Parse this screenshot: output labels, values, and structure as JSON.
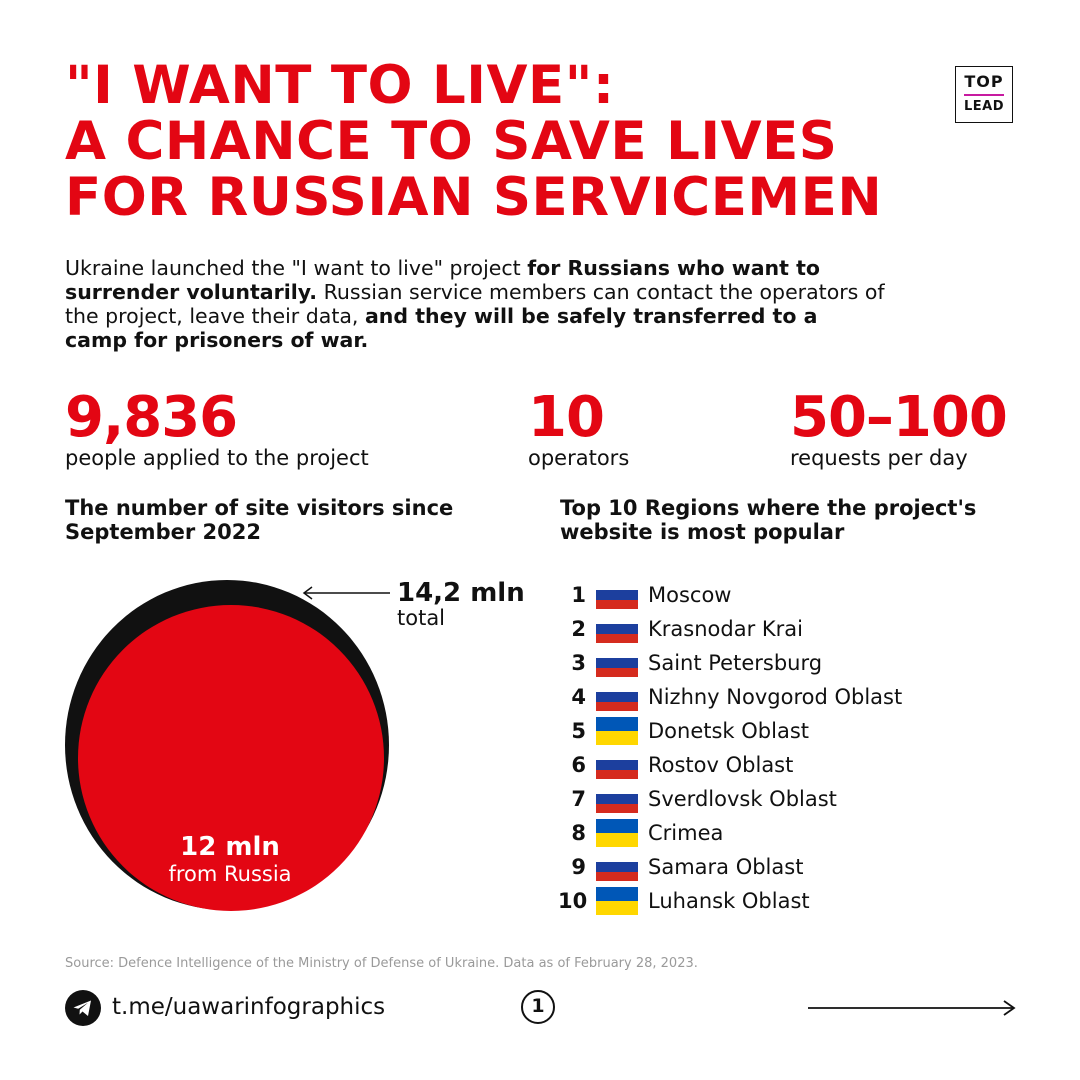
{
  "title": {
    "lines": [
      "\"I WANT TO LIVE\":",
      "A CHANCE TO SAVE LIVES",
      "FOR RUSSIAN SERVICEMEN"
    ]
  },
  "logo": {
    "top": "TOP",
    "bottom": "LEAD"
  },
  "intro": {
    "p1": "Ukraine launched the \"I want to live\" project ",
    "b1": "for Russians who want to surrender voluntarily.",
    "p2": " Russian service members can contact the operators of the project, leave their data, ",
    "b2": "and they will be safely transferred to a camp for prisoners of war."
  },
  "stats": [
    {
      "value": "9,836",
      "caption": "people applied to the project"
    },
    {
      "value": "10",
      "caption": "operators"
    },
    {
      "value": "50–100",
      "caption": "requests per day"
    }
  ],
  "visitors": {
    "heading": "The number of site visitors since September 2022",
    "total_value": "14,2 mln",
    "total_caption": "total",
    "russia_value": "12 mln",
    "russia_caption": "from Russia"
  },
  "regions": {
    "heading": "Top 10 Regions where the project's website is most popular",
    "items": [
      {
        "rank": "1",
        "name": "Moscow",
        "flag": "russia-flag-icon"
      },
      {
        "rank": "2",
        "name": "Krasnodar Krai",
        "flag": "russia-flag-icon"
      },
      {
        "rank": "3",
        "name": "Saint Petersburg",
        "flag": "russia-flag-icon"
      },
      {
        "rank": "4",
        "name": "Nizhny Novgorod Oblast",
        "flag": "russia-flag-icon"
      },
      {
        "rank": "5",
        "name": "Donetsk Oblast",
        "flag": "ukraine-flag-icon"
      },
      {
        "rank": "6",
        "name": "Rostov Oblast",
        "flag": "russia-flag-icon"
      },
      {
        "rank": "7",
        "name": "Sverdlovsk Oblast",
        "flag": "russia-flag-icon"
      },
      {
        "rank": "8",
        "name": "Crimea",
        "flag": "ukraine-flag-icon"
      },
      {
        "rank": "9",
        "name": "Samara Oblast",
        "flag": "russia-flag-icon"
      },
      {
        "rank": "10",
        "name": "Luhansk Oblast",
        "flag": "ukraine-flag-icon"
      }
    ]
  },
  "footer": {
    "source": "Source: Defence Intelligence of the Ministry of Defense of Ukraine. Data as of February 28, 2023.",
    "link": "t.me/uawarinfographics",
    "page": "1",
    "icons": {
      "telegram": "telegram-icon",
      "next": "arrow-right-icon"
    }
  },
  "colors": {
    "accent": "#e30613",
    "text": "#111111",
    "muted": "#9a9a9a",
    "russia_flag": [
      "#ffffff",
      "#1c3f9e",
      "#d52b1e"
    ],
    "ukraine_flag": [
      "#0057b7",
      "#ffd700"
    ]
  }
}
